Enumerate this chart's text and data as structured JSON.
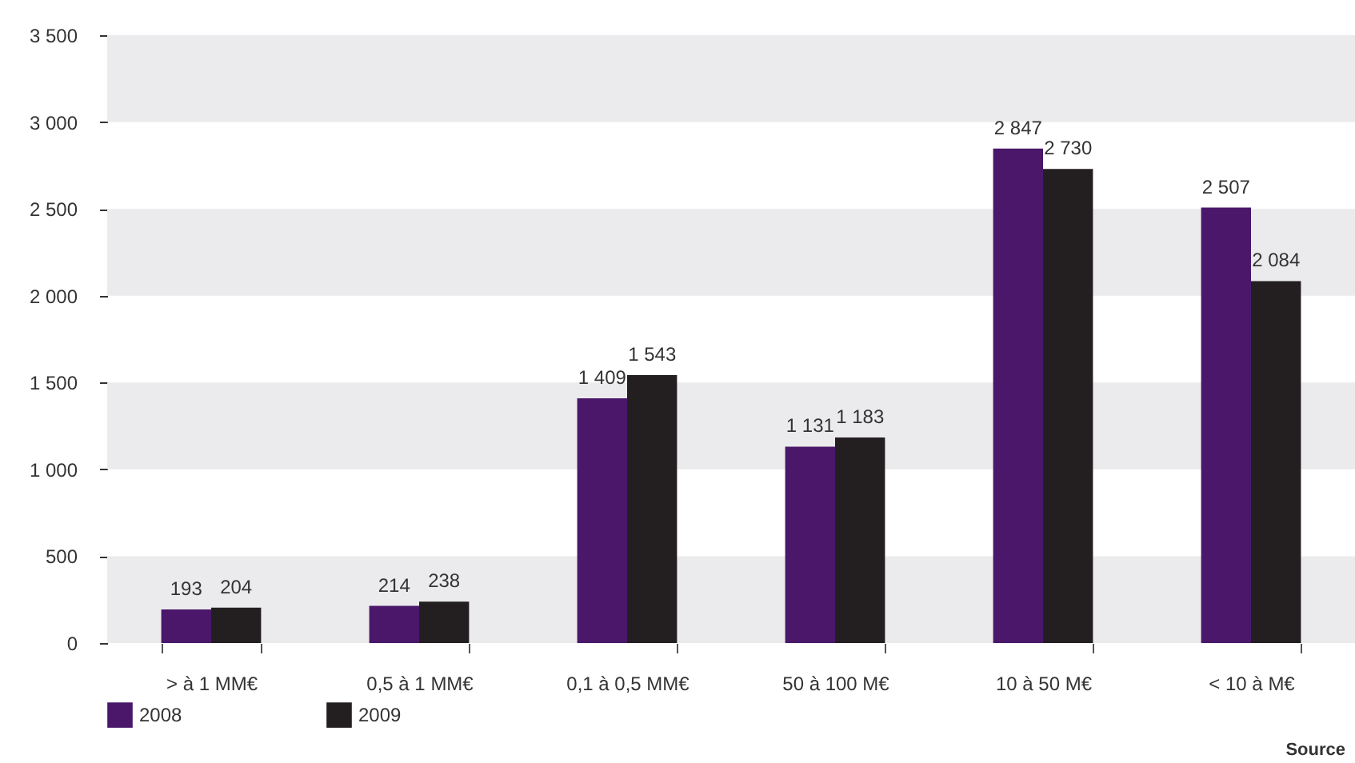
{
  "chart_data": {
    "type": "bar",
    "categories": [
      "> à 1 MM€",
      "0,5 à 1 MM€",
      "0,1 à 0,5 MM€",
      "50 à 100 M€",
      "10 à 50 M€",
      "< 10 à M€"
    ],
    "series": [
      {
        "name": "2008",
        "color": "#4a176a",
        "values": [
          193,
          214,
          1409,
          1131,
          2847,
          2507
        ],
        "value_labels": [
          "193",
          "214",
          "1 409",
          "1 131",
          "2 847",
          "2 507"
        ]
      },
      {
        "name": "2009",
        "color": "#231f20",
        "values": [
          204,
          238,
          1543,
          1183,
          2730,
          2084
        ],
        "value_labels": [
          "204",
          "238",
          "1 543",
          "1 183",
          "2 730",
          "2 084"
        ]
      }
    ],
    "ylim": [
      0,
      3500
    ],
    "yticks": [
      0,
      {
        "value": 500,
        "label": "500"
      },
      {
        "value": 1000,
        "label": "1 000"
      },
      {
        "value": 1500,
        "label": "1 500"
      },
      {
        "value": 2000,
        "label": "2 000"
      },
      {
        "value": 2500,
        "label": "2 500"
      },
      {
        "value": 3000,
        "label": "3 000"
      },
      {
        "value": 3500,
        "label": "3 500"
      }
    ],
    "bands": [
      {
        "axis": "y",
        "from": 0,
        "to": 500,
        "color": "#ebebed"
      },
      {
        "axis": "y",
        "from": 1000,
        "to": 1500,
        "color": "#ebebed"
      },
      {
        "axis": "y",
        "from": 2000,
        "to": 2500,
        "color": "#ebebed"
      },
      {
        "axis": "y",
        "from": 3000,
        "to": 3500,
        "color": "#ebebed"
      }
    ],
    "grid": false,
    "legend": "bottom",
    "annotations": [
      "Source"
    ]
  }
}
